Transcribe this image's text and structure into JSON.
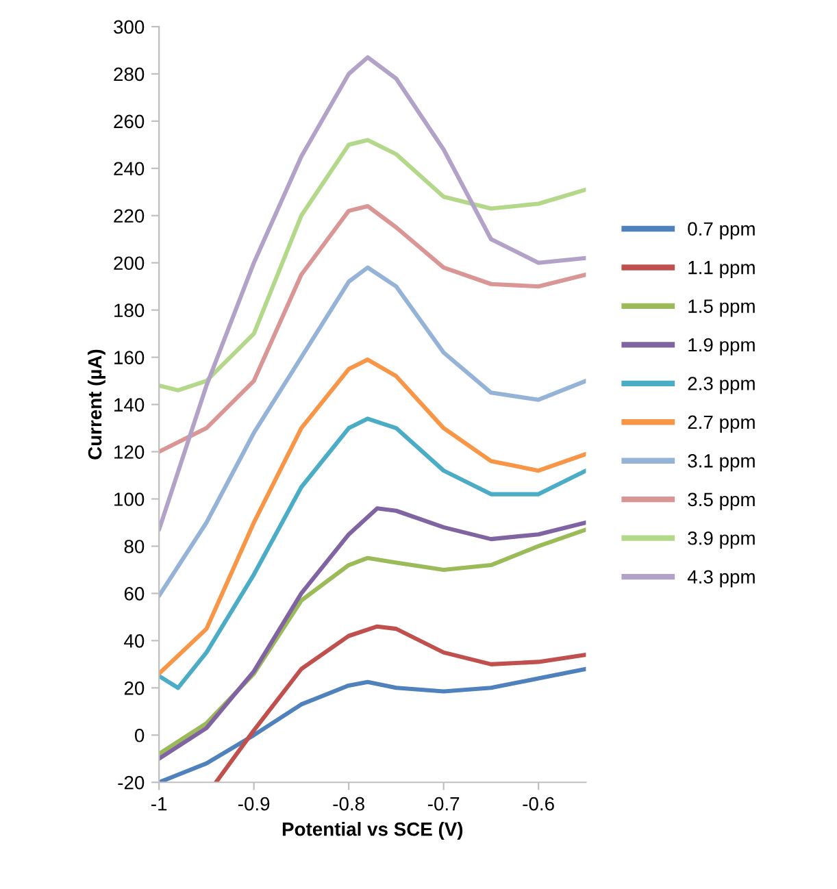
{
  "chart_data": {
    "type": "line",
    "xlabel": "Potential vs SCE (V)",
    "ylabel": "Current (µA)",
    "xlim": [
      -1,
      -0.55
    ],
    "xticks": [
      -1,
      -0.9,
      -0.8,
      -0.7,
      -0.6
    ],
    "ylim": [
      -20,
      300
    ],
    "yticks": [
      -20,
      0,
      20,
      40,
      60,
      80,
      100,
      120,
      140,
      160,
      180,
      200,
      220,
      240,
      260,
      280,
      300
    ],
    "grid": false,
    "legend": "right",
    "marker": "none",
    "line_style": "solid",
    "series": [
      {
        "name": "0.7 ppm",
        "color": "#4f81bd",
        "x": [
          -1,
          -0.95,
          -0.9,
          -0.85,
          -0.8,
          -0.78,
          -0.75,
          -0.7,
          -0.65,
          -0.6,
          -0.55
        ],
        "values": [
          -20,
          -12,
          0,
          13,
          21,
          22.5,
          20,
          18.5,
          20,
          24,
          28
        ]
      },
      {
        "name": "1.1 ppm",
        "color": "#c0504d",
        "x": [
          -0.94,
          -0.9,
          -0.85,
          -0.8,
          -0.77,
          -0.75,
          -0.7,
          -0.65,
          -0.6,
          -0.55
        ],
        "values": [
          -20,
          2,
          28,
          42,
          46,
          45,
          35,
          30,
          31,
          34
        ]
      },
      {
        "name": "1.5 ppm",
        "color": "#9bbb59",
        "x": [
          -1,
          -0.95,
          -0.9,
          -0.85,
          -0.8,
          -0.78,
          -0.75,
          -0.7,
          -0.65,
          -0.6,
          -0.55
        ],
        "values": [
          -8,
          5,
          26,
          57,
          72,
          75,
          73,
          70,
          72,
          80,
          87
        ]
      },
      {
        "name": "1.9 ppm",
        "color": "#8064a2",
        "x": [
          -1,
          -0.95,
          -0.9,
          -0.85,
          -0.8,
          -0.77,
          -0.75,
          -0.7,
          -0.65,
          -0.6,
          -0.55
        ],
        "values": [
          -10,
          3,
          27,
          60,
          85,
          96,
          95,
          88,
          83,
          85,
          90
        ]
      },
      {
        "name": "2.3 ppm",
        "color": "#4bacc6",
        "x": [
          -1,
          -0.98,
          -0.95,
          -0.9,
          -0.85,
          -0.8,
          -0.78,
          -0.75,
          -0.7,
          -0.65,
          -0.6,
          -0.55
        ],
        "values": [
          25,
          20,
          35,
          68,
          105,
          130,
          134,
          130,
          112,
          102,
          102,
          112
        ]
      },
      {
        "name": "2.7 ppm",
        "color": "#f79646",
        "x": [
          -1,
          -0.95,
          -0.9,
          -0.85,
          -0.8,
          -0.78,
          -0.75,
          -0.7,
          -0.65,
          -0.6,
          -0.55
        ],
        "values": [
          26,
          45,
          90,
          130,
          155,
          159,
          152,
          130,
          116,
          112,
          119
        ]
      },
      {
        "name": "3.1 ppm",
        "color": "#95b3d7",
        "x": [
          -1,
          -0.95,
          -0.9,
          -0.85,
          -0.8,
          -0.78,
          -0.75,
          -0.7,
          -0.65,
          -0.6,
          -0.55
        ],
        "values": [
          59,
          90,
          128,
          160,
          192,
          198,
          190,
          162,
          145,
          142,
          150
        ]
      },
      {
        "name": "3.5 ppm",
        "color": "#d99694",
        "x": [
          -1,
          -0.95,
          -0.9,
          -0.85,
          -0.8,
          -0.78,
          -0.75,
          -0.7,
          -0.65,
          -0.6,
          -0.55
        ],
        "values": [
          120,
          130,
          150,
          195,
          222,
          224,
          215,
          198,
          191,
          190,
          195
        ]
      },
      {
        "name": "3.9 ppm",
        "color": "#b3d88a",
        "x": [
          -1,
          -0.98,
          -0.95,
          -0.9,
          -0.85,
          -0.8,
          -0.78,
          -0.75,
          -0.7,
          -0.65,
          -0.6,
          -0.55
        ],
        "values": [
          148,
          146,
          150,
          170,
          220,
          250,
          252,
          246,
          228,
          223,
          225,
          231
        ]
      },
      {
        "name": "4.3 ppm",
        "color": "#b3a2c7",
        "x": [
          -1,
          -0.95,
          -0.9,
          -0.85,
          -0.8,
          -0.78,
          -0.75,
          -0.7,
          -0.65,
          -0.6,
          -0.55
        ],
        "values": [
          87,
          148,
          200,
          245,
          280,
          287,
          278,
          248,
          210,
          200,
          202
        ]
      }
    ]
  }
}
